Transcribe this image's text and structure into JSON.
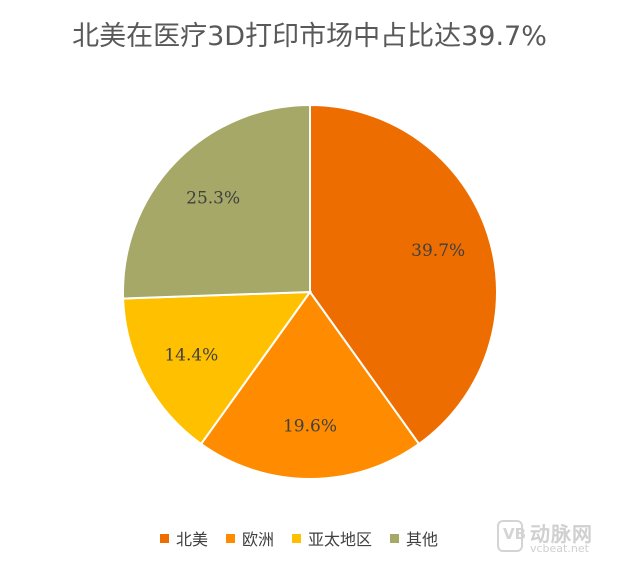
{
  "chart_data": {
    "type": "pie",
    "title": "北美在医疗3D打印市场中占比达39.7%",
    "slices": [
      {
        "label": "北美",
        "value": 39.7,
        "display": "39.7%",
        "color": "#ED6D00"
      },
      {
        "label": "欧洲",
        "value": 19.6,
        "display": "19.6%",
        "color": "#FF8C00"
      },
      {
        "label": "亚太地区",
        "value": 14.4,
        "display": "14.4%",
        "color": "#FFC000"
      },
      {
        "label": "其他",
        "value": 25.3,
        "display": "25.3%",
        "color": "#A5A866"
      }
    ],
    "start_direction": "top",
    "direction": "clockwise",
    "legend_position": "bottom"
  },
  "watermark": {
    "logo_glyph": "VB",
    "name": "动脉网",
    "url": "vcbeat.net"
  }
}
